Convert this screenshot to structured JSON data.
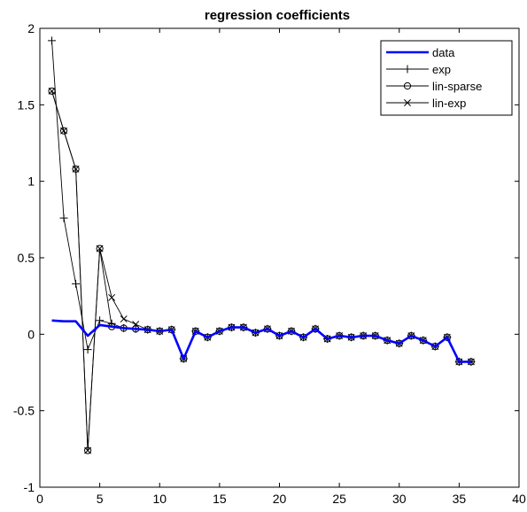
{
  "chart_data": {
    "type": "line",
    "title": "regression coefficients",
    "xlabel": "",
    "ylabel": "",
    "xlim": [
      0,
      40
    ],
    "ylim": [
      -1,
      2
    ],
    "xticks": [
      0,
      5,
      10,
      15,
      20,
      25,
      30,
      35,
      40
    ],
    "yticks": [
      -1,
      -0.5,
      0,
      0.5,
      1,
      1.5,
      2
    ],
    "ytick_labels": [
      "-1",
      "-0.5",
      "0",
      "0.5",
      "1",
      "1.5",
      "2"
    ],
    "grid": false,
    "legend_position": "top-right",
    "x": [
      1,
      2,
      3,
      4,
      5,
      6,
      7,
      8,
      9,
      10,
      11,
      12,
      13,
      14,
      15,
      16,
      17,
      18,
      19,
      20,
      21,
      22,
      23,
      24,
      25,
      26,
      27,
      28,
      29,
      30,
      31,
      32,
      33,
      34,
      35,
      36
    ],
    "series": [
      {
        "name": "data",
        "color": "#0000ff",
        "marker": "none",
        "values": [
          0.09,
          0.085,
          0.085,
          -0.01,
          0.06,
          0.05,
          0.04,
          0.035,
          0.03,
          0.02,
          0.03,
          -0.16,
          0.02,
          -0.02,
          0.02,
          0.045,
          0.045,
          0.01,
          0.035,
          -0.01,
          0.02,
          -0.02,
          0.035,
          -0.03,
          -0.01,
          -0.02,
          -0.01,
          -0.01,
          -0.04,
          -0.06,
          -0.01,
          -0.04,
          -0.08,
          -0.02,
          -0.18,
          -0.18
        ]
      },
      {
        "name": "exp",
        "color": "#000000",
        "marker": "plus",
        "values": [
          1.92,
          0.76,
          0.33,
          -0.1,
          0.09,
          0.07,
          0.04,
          0.035,
          0.03,
          0.02,
          0.03,
          -0.16,
          0.02,
          -0.02,
          0.02,
          0.045,
          0.045,
          0.01,
          0.035,
          -0.01,
          0.02,
          -0.02,
          0.035,
          -0.03,
          -0.01,
          -0.02,
          -0.01,
          -0.01,
          -0.04,
          -0.06,
          -0.01,
          -0.04,
          -0.08,
          -0.02,
          -0.18,
          -0.18
        ]
      },
      {
        "name": "lin-sparse",
        "color": "#000000",
        "marker": "circle",
        "values": [
          1.59,
          1.33,
          1.08,
          -0.76,
          0.56,
          0.05,
          0.04,
          0.035,
          0.03,
          0.02,
          0.03,
          -0.16,
          0.02,
          -0.02,
          0.02,
          0.045,
          0.045,
          0.01,
          0.035,
          -0.01,
          0.02,
          -0.02,
          0.035,
          -0.03,
          -0.01,
          -0.02,
          -0.01,
          -0.01,
          -0.04,
          -0.06,
          -0.01,
          -0.04,
          -0.08,
          -0.02,
          -0.18,
          -0.18
        ]
      },
      {
        "name": "lin-exp",
        "color": "#000000",
        "marker": "x",
        "values": [
          1.59,
          1.33,
          1.08,
          -0.76,
          0.56,
          0.24,
          0.1,
          0.065,
          0.03,
          0.02,
          0.03,
          -0.16,
          0.02,
          -0.02,
          0.02,
          0.045,
          0.045,
          0.01,
          0.035,
          -0.01,
          0.02,
          -0.02,
          0.035,
          -0.03,
          -0.01,
          -0.02,
          -0.01,
          -0.01,
          -0.04,
          -0.06,
          -0.01,
          -0.04,
          -0.08,
          -0.02,
          -0.18,
          -0.18
        ]
      }
    ]
  }
}
